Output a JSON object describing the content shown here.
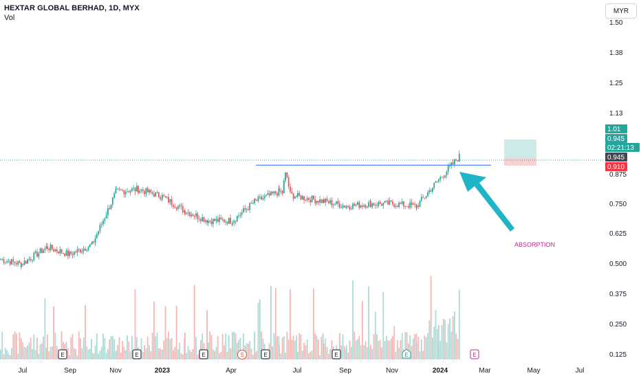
{
  "header": {
    "title": "HEXTAR GLOBAL BERHAD, 1D, MYX",
    "volume_label": "Vol"
  },
  "currency_button": "MYR",
  "colors": {
    "up": "#26a69a",
    "down": "#ef5350",
    "up_vol": "#a8dbd6",
    "down_vol": "#f7b6b4",
    "line": "#2962ff",
    "arrow": "#1fb5c6",
    "annotation": "#c0288f",
    "target_box": "#cdebe8",
    "stop_box": "#f7d2d1"
  },
  "annotation": "ABSORPTION",
  "price_tags": [
    {
      "label": "1.01",
      "bg": "#26a69a",
      "fg": "#ffffff"
    },
    {
      "label": "0.945",
      "bg": "#26a69a",
      "fg": "#ffffff"
    },
    {
      "label": "02:21:13",
      "bg": "#26a69a",
      "fg": "#ffffff"
    },
    {
      "label": "0.945",
      "bg": "#434651",
      "fg": "#ffffff"
    },
    {
      "label": "0.910",
      "bg": "#f23645",
      "fg": "#ffffff"
    }
  ],
  "events": [
    {
      "label": "E",
      "color": "#131722"
    },
    {
      "label": "E",
      "color": "#131722"
    },
    {
      "label": "E",
      "color": "#131722"
    },
    {
      "label": "S",
      "color": "#e8553a"
    },
    {
      "label": "E",
      "color": "#131722"
    },
    {
      "label": "E",
      "color": "#131722"
    },
    {
      "label": "E",
      "color": "#26a69a"
    },
    {
      "label": "E",
      "color": "#c0288f"
    }
  ],
  "chart_data": {
    "type": "candlestick",
    "symbol": "HEXTAR GLOBAL BERHAD",
    "interval": "1D",
    "exchange": "MYX",
    "y_ticks": [
      "1.50",
      "1.38",
      "1.25",
      "1.13",
      "0.875",
      "0.750",
      "0.625",
      "0.500",
      "0.375",
      "0.250",
      "0.125"
    ],
    "x_ticks": [
      "Jul",
      "Sep",
      "Nov",
      "2023",
      "Apr",
      "Jul",
      "Sep",
      "Nov",
      "2024",
      "Mar",
      "May",
      "Jul"
    ],
    "ylim": [
      0.11,
      1.56
    ],
    "resistance_level": 0.91,
    "last_price": 0.945,
    "target": 1.01,
    "stop": 0.91,
    "price_path": [
      {
        "month": "Jun 2022",
        "close": 0.52
      },
      {
        "month": "Jul 2022",
        "close": 0.5
      },
      {
        "month": "Aug 2022",
        "close": 0.57
      },
      {
        "month": "Sep 2022",
        "close": 0.54
      },
      {
        "month": "Oct 2022",
        "close": 0.58
      },
      {
        "month": "Nov 2022",
        "close": 0.8
      },
      {
        "month": "Dec 2022",
        "close": 0.81
      },
      {
        "month": "Jan 2023",
        "close": 0.78
      },
      {
        "month": "Feb 2023",
        "close": 0.72
      },
      {
        "month": "Mar 2023",
        "close": 0.68
      },
      {
        "month": "Apr 2023",
        "close": 0.68
      },
      {
        "month": "May 2023",
        "close": 0.76
      },
      {
        "month": "Jun 2023",
        "close": 0.8
      },
      {
        "month": "Jul 2023",
        "close": 0.78
      },
      {
        "month": "Aug 2023",
        "close": 0.76
      },
      {
        "month": "Sep 2023",
        "close": 0.74
      },
      {
        "month": "Oct 2023",
        "close": 0.75
      },
      {
        "month": "Nov 2023",
        "close": 0.75
      },
      {
        "month": "Dec 2023",
        "close": 0.74
      },
      {
        "month": "Jan 2024",
        "close": 0.85
      },
      {
        "month": "Feb 2024",
        "close": 0.945
      }
    ]
  }
}
